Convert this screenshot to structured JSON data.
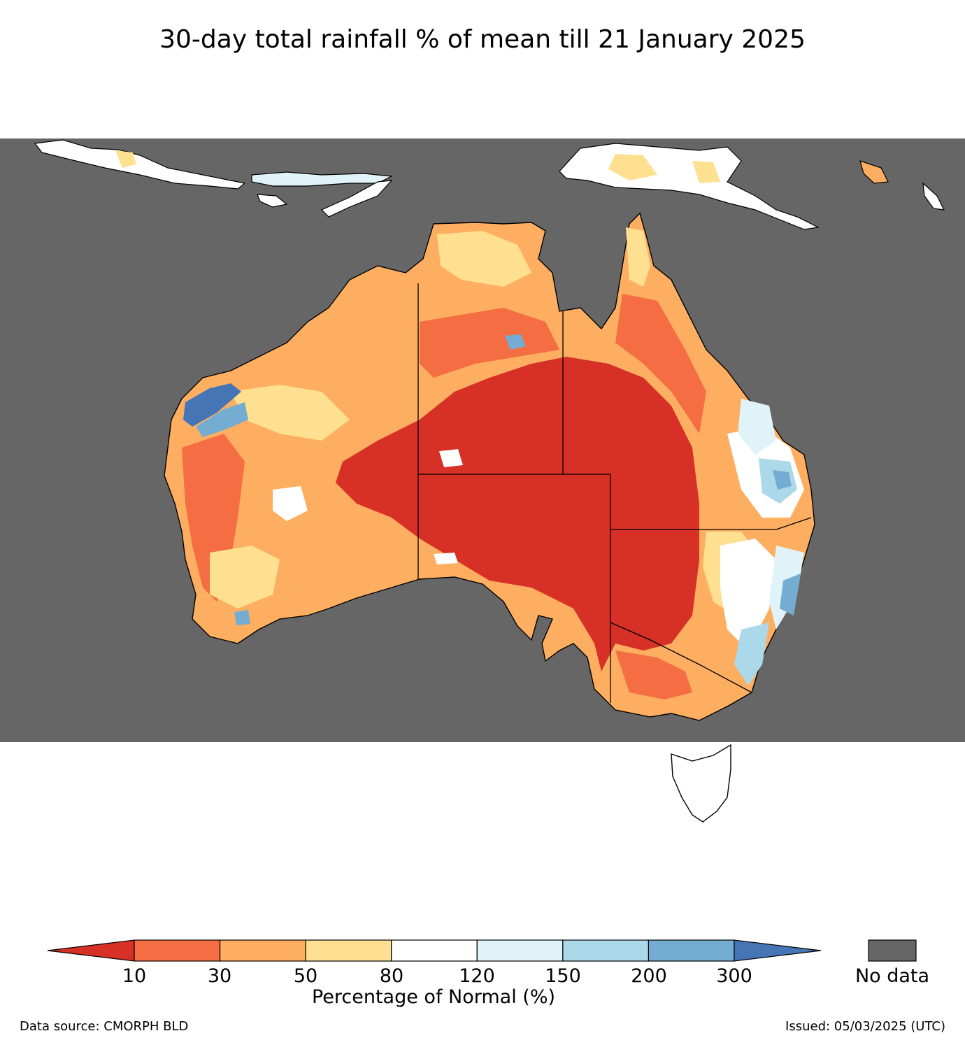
{
  "title": "30-day total rainfall % of mean till 21 January 2025",
  "colorbar": {
    "label": "Percentage of Normal (%)",
    "ticks": [
      "10",
      "30",
      "50",
      "80",
      "120",
      "150",
      "200",
      "300"
    ],
    "bins": [
      {
        "range": "<10",
        "color": "#d73027"
      },
      {
        "range": "10-30",
        "color": "#f46d43"
      },
      {
        "range": "30-50",
        "color": "#fdae61"
      },
      {
        "range": "50-80",
        "color": "#fee090"
      },
      {
        "range": "80-120",
        "color": "#ffffff"
      },
      {
        "range": "120-150",
        "color": "#e0f3f8"
      },
      {
        "range": "150-200",
        "color": "#abd9e9"
      },
      {
        "range": "200-300",
        "color": "#74add1"
      },
      {
        "range": ">300",
        "color": "#4575b4"
      }
    ]
  },
  "no_data": {
    "label": "No data",
    "color": "#666666"
  },
  "footer": {
    "source": "Data source: CMORPH BLD",
    "issued": "Issued: 05/03/2025 (UTC)"
  }
}
